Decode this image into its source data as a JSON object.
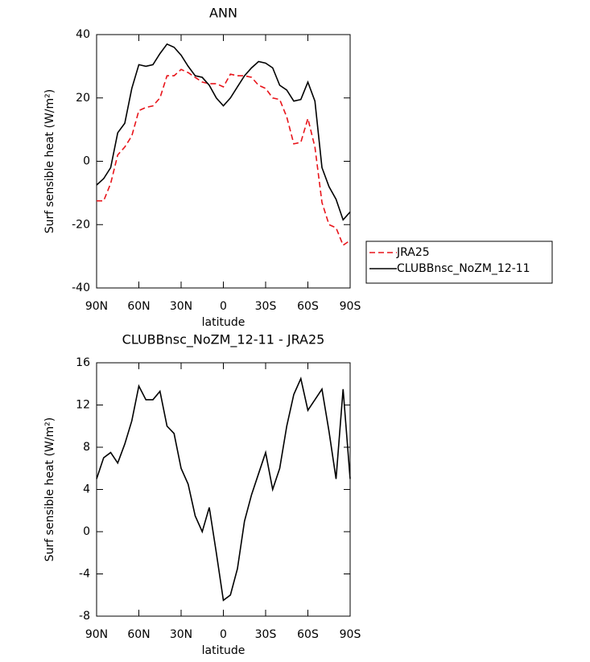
{
  "chart_data": [
    {
      "type": "line",
      "title": "ANN",
      "xlabel": "latitude",
      "ylabel": "Surf sensible heat (W/m²)",
      "x": [
        90,
        85,
        80,
        75,
        70,
        65,
        60,
        55,
        50,
        45,
        40,
        35,
        30,
        25,
        20,
        15,
        10,
        5,
        0,
        -5,
        -10,
        -15,
        -20,
        -25,
        -30,
        -35,
        -40,
        -45,
        -50,
        -55,
        -60,
        -65,
        -70,
        -75,
        -80,
        -85,
        -90
      ],
      "series": [
        {
          "name": "JRA25",
          "color": "#e8141a",
          "dash": true,
          "values": [
            -12.5,
            -12.5,
            -7,
            2,
            4.5,
            8,
            16,
            17,
            17.5,
            20,
            27,
            27,
            29,
            28,
            26.5,
            25,
            24.5,
            24.5,
            23.5,
            27.5,
            27,
            27,
            26.5,
            24,
            23,
            20,
            19.5,
            14,
            5.5,
            6,
            13.5,
            4.5,
            -13,
            -20,
            -21,
            -26.5,
            -25
          ]
        },
        {
          "name": "CLUBBnsc_NoZM_12-11",
          "color": "#000000",
          "dash": false,
          "values": [
            -7.5,
            -5.5,
            -2,
            9,
            12,
            23,
            30.5,
            30,
            30.5,
            34,
            37,
            36,
            33.5,
            30,
            27,
            26.5,
            24,
            20,
            17.5,
            20,
            23.5,
            27,
            29.5,
            31.5,
            31,
            29.5,
            24,
            22.5,
            19,
            19.5,
            25,
            19,
            -2,
            -8,
            -12,
            -18.5,
            -16
          ]
        }
      ],
      "xlim": [
        90,
        -90
      ],
      "xticks": [
        {
          "value": 90,
          "label": "90N"
        },
        {
          "value": 60,
          "label": "60N"
        },
        {
          "value": 30,
          "label": "30N"
        },
        0,
        {
          "value": -30,
          "label": "30S"
        },
        {
          "value": -60,
          "label": "60S"
        },
        {
          "value": -90,
          "label": "90S"
        }
      ],
      "ylim": [
        -40,
        40
      ],
      "yticks": [
        -40,
        -20,
        0,
        20,
        40
      ],
      "legend": "right"
    },
    {
      "type": "line",
      "title": "CLUBBnsc_NoZM_12-11 - JRA25",
      "xlabel": "latitude",
      "ylabel": "Surf sensible heat (W/m²)",
      "x": [
        90,
        85,
        80,
        75,
        70,
        65,
        60,
        55,
        50,
        45,
        40,
        35,
        30,
        25,
        20,
        15,
        10,
        5,
        0,
        -5,
        -10,
        -15,
        -20,
        -25,
        -30,
        -35,
        -40,
        -45,
        -50,
        -55,
        -60,
        -65,
        -70,
        -75,
        -80,
        -85,
        -90
      ],
      "series": [
        {
          "color": "#000000",
          "dash": false,
          "values": [
            5,
            7,
            7.5,
            6.5,
            8.3,
            10.5,
            13.8,
            12.5,
            12.5,
            13.3,
            10,
            9.3,
            6,
            4.5,
            1.5,
            0,
            2.3,
            -2,
            -6.5,
            -6,
            -3.5,
            1,
            3.5,
            5.5,
            7.5,
            4,
            6,
            10,
            13,
            14.5,
            11.5,
            12.5,
            13.5,
            9.5,
            5,
            13.5,
            5
          ]
        }
      ],
      "xlim": [
        90,
        -90
      ],
      "xticks": [
        {
          "value": 90,
          "label": "90N"
        },
        {
          "value": 60,
          "label": "60N"
        },
        {
          "value": 30,
          "label": "30N"
        },
        0,
        {
          "value": -30,
          "label": "30S"
        },
        {
          "value": -60,
          "label": "60S"
        },
        {
          "value": -90,
          "label": "90S"
        }
      ],
      "ylim": [
        -8,
        16
      ],
      "yticks": [
        -8,
        -4,
        0,
        4,
        8,
        12,
        16
      ]
    }
  ]
}
